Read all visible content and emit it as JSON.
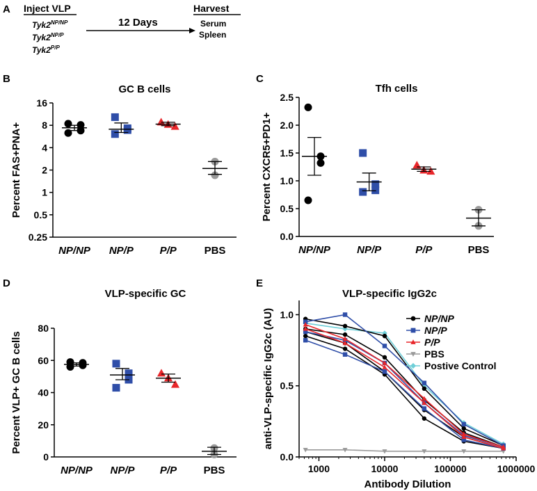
{
  "panel_a": {
    "label": "A",
    "inject": "Inject VLP",
    "genotypes": [
      {
        "prefix": "Tyk2",
        "sup": "NP/NP"
      },
      {
        "prefix": "Tyk2",
        "sup": "NP/P"
      },
      {
        "prefix": "Tyk2",
        "sup": "P/P"
      }
    ],
    "days": "12 Days",
    "harvest": "Harvest",
    "tissues": [
      "Serum",
      "Spleen"
    ]
  },
  "colors": {
    "np_np": "#000000",
    "np_p": "#2f4ea8",
    "p_p": "#e8262a",
    "pbs": "#9a9a9a",
    "pos": "#6fcfd8"
  },
  "chart_data": [
    {
      "panel": "B",
      "type": "scatter",
      "title": "GC B cells",
      "ylabel": "Percent FAS+PNA+",
      "yscale": "log2",
      "ylim": [
        0.25,
        16
      ],
      "yticks": [
        "16",
        "8",
        "4",
        "2",
        "1",
        "0.5",
        "0.25"
      ],
      "ytick_values": [
        16,
        8,
        4,
        2,
        1,
        0.5,
        0.25
      ],
      "categories": [
        "NP/NP",
        "NP/P",
        "P/P",
        "PBS"
      ],
      "italic_categories": [
        true,
        true,
        true,
        false
      ],
      "groups": [
        {
          "name": "NP/NP",
          "marker": "circle",
          "color": "#000000",
          "values": [
            8.4,
            8.1,
            6.8,
            6.3
          ],
          "mean": 7.4,
          "sem_low": 6.8,
          "sem_high": 8.0
        },
        {
          "name": "NP/P",
          "marker": "square",
          "color": "#2f4ea8",
          "values": [
            10.3,
            7.3,
            6.9,
            6.1
          ],
          "mean": 7.1,
          "sem_low": 6.4,
          "sem_high": 8.6
        },
        {
          "name": "P/P",
          "marker": "triangle",
          "color": "#e8262a",
          "values": [
            8.8,
            8.2,
            7.7
          ],
          "mean": 8.3,
          "sem_low": 7.9,
          "sem_high": 8.8
        },
        {
          "name": "PBS",
          "marker": "circle",
          "color": "#9a9a9a",
          "values": [
            2.6,
            1.7
          ],
          "mean": 2.1,
          "sem_low": 1.75,
          "sem_high": 2.6
        }
      ]
    },
    {
      "panel": "C",
      "type": "scatter",
      "title": "Tfh cells",
      "ylabel": "Percent CXCR5+PD1+",
      "yscale": "linear",
      "ylim": [
        0,
        2.5
      ],
      "yticks": [
        "0.0",
        "0.5",
        "1.0",
        "1.5",
        "2.0",
        "2.5"
      ],
      "ytick_values": [
        0,
        0.5,
        1.0,
        1.5,
        2.0,
        2.5
      ],
      "categories": [
        "NP/NP",
        "NP/P",
        "P/P",
        "PBS"
      ],
      "italic_categories": [
        true,
        true,
        true,
        false
      ],
      "groups": [
        {
          "name": "NP/NP",
          "marker": "circle",
          "color": "#000000",
          "values": [
            2.32,
            1.44,
            1.32,
            0.65
          ],
          "mean": 1.44,
          "sem_low": 1.1,
          "sem_high": 1.78
        },
        {
          "name": "NP/P",
          "marker": "square",
          "color": "#2f4ea8",
          "values": [
            1.5,
            0.94,
            0.83,
            0.8
          ],
          "mean": 0.98,
          "sem_low": 0.82,
          "sem_high": 1.14
        },
        {
          "name": "P/P",
          "marker": "triangle",
          "color": "#e8262a",
          "values": [
            1.28,
            1.19,
            1.17
          ],
          "mean": 1.21,
          "sem_low": 1.17,
          "sem_high": 1.25
        },
        {
          "name": "PBS",
          "marker": "circle",
          "color": "#9a9a9a",
          "values": [
            0.48,
            0.19
          ],
          "mean": 0.33,
          "sem_low": 0.19,
          "sem_high": 0.48
        }
      ]
    },
    {
      "panel": "D",
      "type": "scatter",
      "title": "VLP-specific GC",
      "ylabel": "Percent VLP+ GC B cells",
      "yscale": "linear",
      "ylim": [
        0,
        80
      ],
      "yticks": [
        "0",
        "20",
        "40",
        "60",
        "80"
      ],
      "ytick_values": [
        0,
        20,
        40,
        60,
        80
      ],
      "categories": [
        "NP/NP",
        "NP/P",
        "P/P",
        "PBS"
      ],
      "italic_categories": [
        true,
        true,
        true,
        false
      ],
      "groups": [
        {
          "name": "NP/NP",
          "marker": "circle",
          "color": "#000000",
          "values": [
            59.0,
            58.5,
            57.0,
            56.0
          ],
          "mean": 57.5,
          "sem_low": 56.5,
          "sem_high": 58.5
        },
        {
          "name": "NP/P",
          "marker": "square",
          "color": "#2f4ea8",
          "values": [
            58.0,
            52.0,
            48.0,
            43.0
          ],
          "mean": 51.0,
          "sem_low": 48.0,
          "sem_high": 55.0
        },
        {
          "name": "P/P",
          "marker": "triangle",
          "color": "#e8262a",
          "values": [
            52.0,
            49.0,
            45.0
          ],
          "mean": 49.0,
          "sem_low": 46.5,
          "sem_high": 51.5
        },
        {
          "name": "PBS",
          "marker": "circle",
          "color": "#9a9a9a",
          "values": [
            5.5,
            1.5
          ],
          "mean": 3.5,
          "sem_low": 1.5,
          "sem_high": 6.0
        }
      ]
    },
    {
      "panel": "E",
      "type": "line",
      "title": "VLP-specific IgG2c",
      "xlabel": "Antibody Dilution",
      "ylabel": "anti-VLP-specific IgG2c (AU)",
      "xscale": "log10",
      "xlim": [
        500,
        1000000
      ],
      "ylim": [
        0,
        1.1
      ],
      "xticks": [
        "1000",
        "10000",
        "100000",
        "1000000"
      ],
      "xtick_values": [
        1000,
        10000,
        100000,
        1000000
      ],
      "yticks": [
        "0.0",
        "0.5",
        "1.0"
      ],
      "ytick_values": [
        0,
        0.5,
        1.0
      ],
      "x": [
        625,
        2500,
        10000,
        40000,
        160000,
        640000
      ],
      "legend": [
        {
          "label": "NP/NP",
          "color": "#000000",
          "marker": "circle",
          "italic": true
        },
        {
          "label": "NP/P",
          "color": "#2f4ea8",
          "marker": "square",
          "italic": true
        },
        {
          "label": "P/P",
          "color": "#e8262a",
          "marker": "triangle",
          "italic": true
        },
        {
          "label": "PBS",
          "color": "#9a9a9a",
          "marker": "triangle-down",
          "italic": false
        },
        {
          "label": "Postive Control",
          "color": "#6fcfd8",
          "marker": "diamond",
          "italic": false
        }
      ],
      "series": [
        {
          "name": "NP/NP",
          "color": "#000000",
          "marker": "circle",
          "values": [
            0.97,
            0.92,
            0.85,
            0.48,
            0.2,
            0.08
          ]
        },
        {
          "name": "NP/NP",
          "color": "#000000",
          "marker": "circle",
          "values": [
            0.9,
            0.86,
            0.7,
            0.4,
            0.17,
            0.07
          ]
        },
        {
          "name": "NP/NP",
          "color": "#000000",
          "marker": "circle",
          "values": [
            0.88,
            0.8,
            0.6,
            0.33,
            0.14,
            0.06
          ]
        },
        {
          "name": "NP/NP",
          "color": "#000000",
          "marker": "circle",
          "values": [
            0.85,
            0.76,
            0.58,
            0.27,
            0.11,
            0.06
          ]
        },
        {
          "name": "NP/P",
          "color": "#2f4ea8",
          "marker": "square",
          "values": [
            0.95,
            1.0,
            0.78,
            0.52,
            0.23,
            0.08
          ]
        },
        {
          "name": "NP/P",
          "color": "#2f4ea8",
          "marker": "square",
          "values": [
            0.88,
            0.82,
            0.66,
            0.38,
            0.15,
            0.07
          ]
        },
        {
          "name": "NP/P",
          "color": "#2f4ea8",
          "marker": "square",
          "values": [
            0.82,
            0.72,
            0.6,
            0.34,
            0.12,
            0.06
          ]
        },
        {
          "name": "P/P",
          "color": "#e8262a",
          "marker": "triangle",
          "values": [
            0.93,
            0.83,
            0.66,
            0.41,
            0.16,
            0.07
          ]
        },
        {
          "name": "P/P",
          "color": "#e8262a",
          "marker": "triangle",
          "values": [
            0.9,
            0.8,
            0.63,
            0.38,
            0.14,
            0.06
          ]
        },
        {
          "name": "PBS",
          "color": "#9a9a9a",
          "marker": "triangle-down",
          "values": [
            0.05,
            0.05,
            0.04,
            0.04,
            0.04,
            0.04
          ]
        },
        {
          "name": "Postive Control",
          "color": "#6fcfd8",
          "marker": "diamond",
          "values": [
            0.94,
            0.9,
            0.87,
            0.5,
            0.24,
            0.09
          ]
        }
      ]
    }
  ]
}
